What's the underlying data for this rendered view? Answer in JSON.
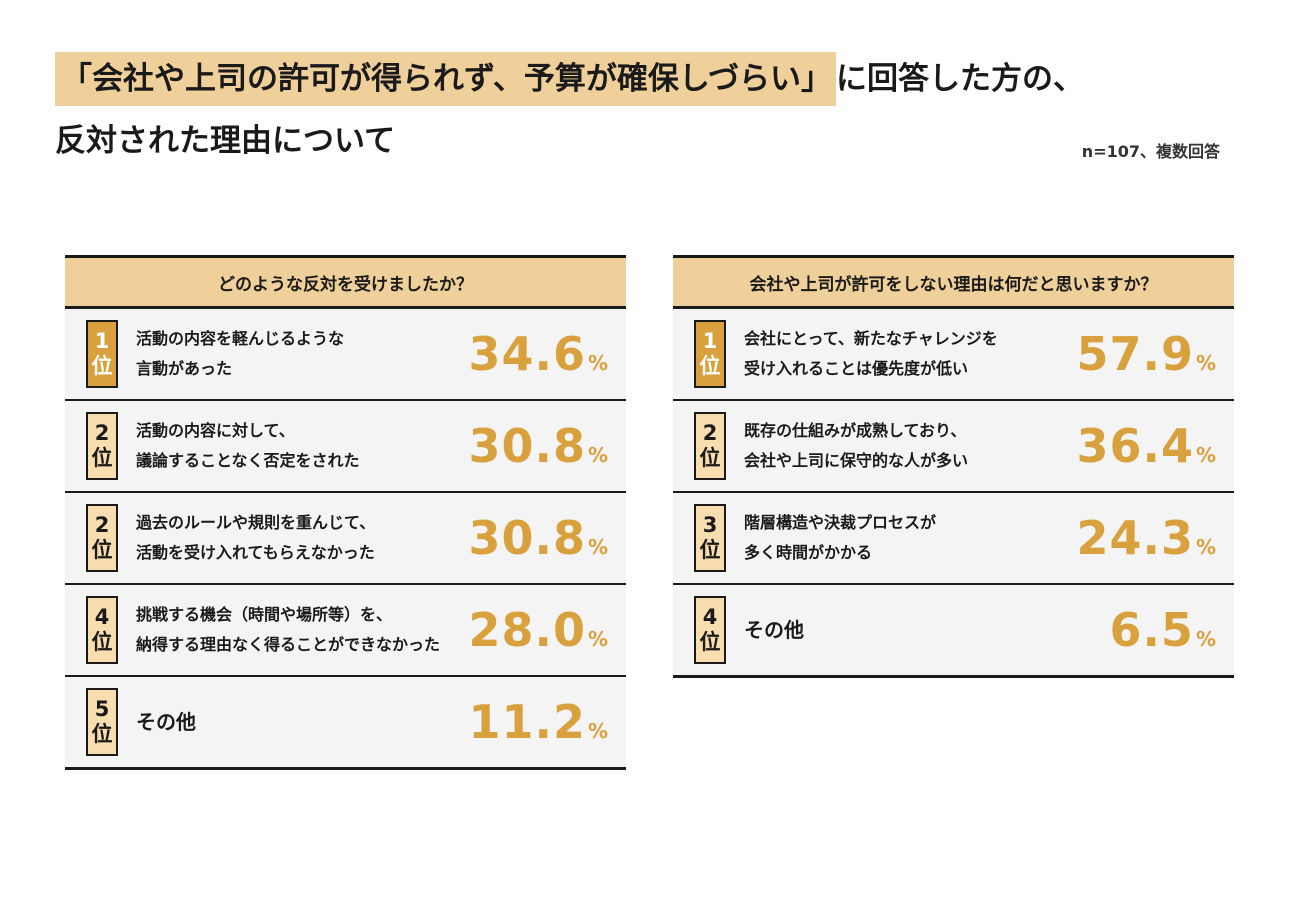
{
  "title": {
    "highlight": "「会社や上司の許可が得られず、予算が確保しづらい」",
    "line1_rest": "に回答した方の、",
    "line2": "反対された理由について"
  },
  "note": "n=107、複数回答",
  "chart_data": [
    {
      "type": "table",
      "title": "どのような反対を受けましたか？",
      "unit": "%",
      "rows": [
        {
          "rank_num": "1",
          "rank_suffix": "位",
          "label": "活動の内容を軽んじるような\n言動があった",
          "value": 34.6,
          "value_text": "34.6"
        },
        {
          "rank_num": "2",
          "rank_suffix": "位",
          "label": "活動の内容に対して、\n議論することなく否定をされた",
          "value": 30.8,
          "value_text": "30.8"
        },
        {
          "rank_num": "2",
          "rank_suffix": "位",
          "label": "過去のルールや規則を重んじて、\n活動を受け入れてもらえなかった",
          "value": 30.8,
          "value_text": "30.8"
        },
        {
          "rank_num": "4",
          "rank_suffix": "位",
          "label": "挑戦する機会（時間や場所等）を、\n納得する理由なく得ることができなかった",
          "value": 28.0,
          "value_text": "28.0"
        },
        {
          "rank_num": "5",
          "rank_suffix": "位",
          "label": "その他",
          "value": 11.2,
          "value_text": "11.2"
        }
      ]
    },
    {
      "type": "table",
      "title": "会社や上司が許可をしない理由は何だと思いますか？",
      "unit": "%",
      "rows": [
        {
          "rank_num": "1",
          "rank_suffix": "位",
          "label": "会社にとって、新たなチャレンジを\n受け入れることは優先度が低い",
          "value": 57.9,
          "value_text": "57.9"
        },
        {
          "rank_num": "2",
          "rank_suffix": "位",
          "label": "既存の仕組みが成熟しており、\n会社や上司に保守的な人が多い",
          "value": 36.4,
          "value_text": "36.4"
        },
        {
          "rank_num": "3",
          "rank_suffix": "位",
          "label": "階層構造や決裁プロセスが\n多く時間がかかる",
          "value": 24.3,
          "value_text": "24.3"
        },
        {
          "rank_num": "4",
          "rank_suffix": "位",
          "label": "その他",
          "value": 6.5,
          "value_text": "6.5"
        }
      ]
    }
  ],
  "colors": {
    "accent": "#d9a13d",
    "header_bg": "#f0d09a",
    "rank_bg": "#f7ddb0",
    "row_bg": "#f4f4f4"
  }
}
